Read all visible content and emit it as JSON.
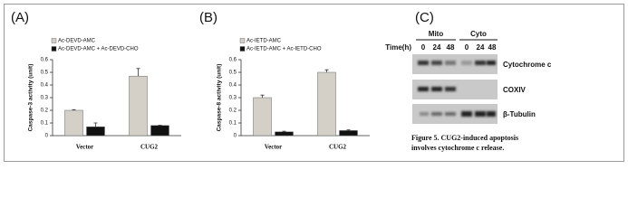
{
  "chart_data": [
    {
      "type": "bar",
      "panel": "(A)",
      "y_label": "Caspase-3 activity (unit)",
      "categories": [
        "Vector",
        "CUG2"
      ],
      "series": [
        {
          "name": "Ac-DEVD-AMC",
          "color": "#d4d0c8",
          "values": [
            0.2,
            0.47
          ],
          "errors": [
            0.005,
            0.06
          ]
        },
        {
          "name": "Ac-DEVD-AMC + Ac-DEVD-CHO",
          "color": "#111111",
          "values": [
            0.07,
            0.08
          ],
          "errors": [
            0.03,
            0.002
          ]
        }
      ],
      "ylim": [
        0,
        0.6
      ],
      "yticks": [
        0,
        0.1,
        0.2,
        0.3,
        0.4,
        0.5,
        0.6
      ]
    },
    {
      "type": "bar",
      "panel": "(B)",
      "y_label": "Caspase-8 activity (unit)",
      "categories": [
        "Vector",
        "CUG2"
      ],
      "series": [
        {
          "name": "Ac-IETD-AMC",
          "color": "#d4d0c8",
          "values": [
            0.3,
            0.5
          ],
          "errors": [
            0.02,
            0.02
          ]
        },
        {
          "name": "Ac-IETD-AMC + Ac-IETD-CHO",
          "color": "#111111",
          "values": [
            0.03,
            0.04
          ],
          "errors": [
            0.005,
            0.005
          ]
        }
      ],
      "ylim": [
        0,
        0.6
      ],
      "yticks": [
        0,
        0.1,
        0.2,
        0.3,
        0.4,
        0.5,
        0.6
      ]
    }
  ],
  "panel_c": {
    "label": "(C)",
    "groups": [
      "Mito",
      "Cyto"
    ],
    "time_label": "Time(h)",
    "lanes": [
      "0",
      "24",
      "48",
      "0",
      "24",
      "48"
    ],
    "blots": [
      "Cytochrome c",
      "COXIV",
      "β-Tubulin"
    ],
    "caption": [
      "Figure 5.  CUG2-induced apoptosis",
      "involves  cytochrome c release."
    ]
  }
}
